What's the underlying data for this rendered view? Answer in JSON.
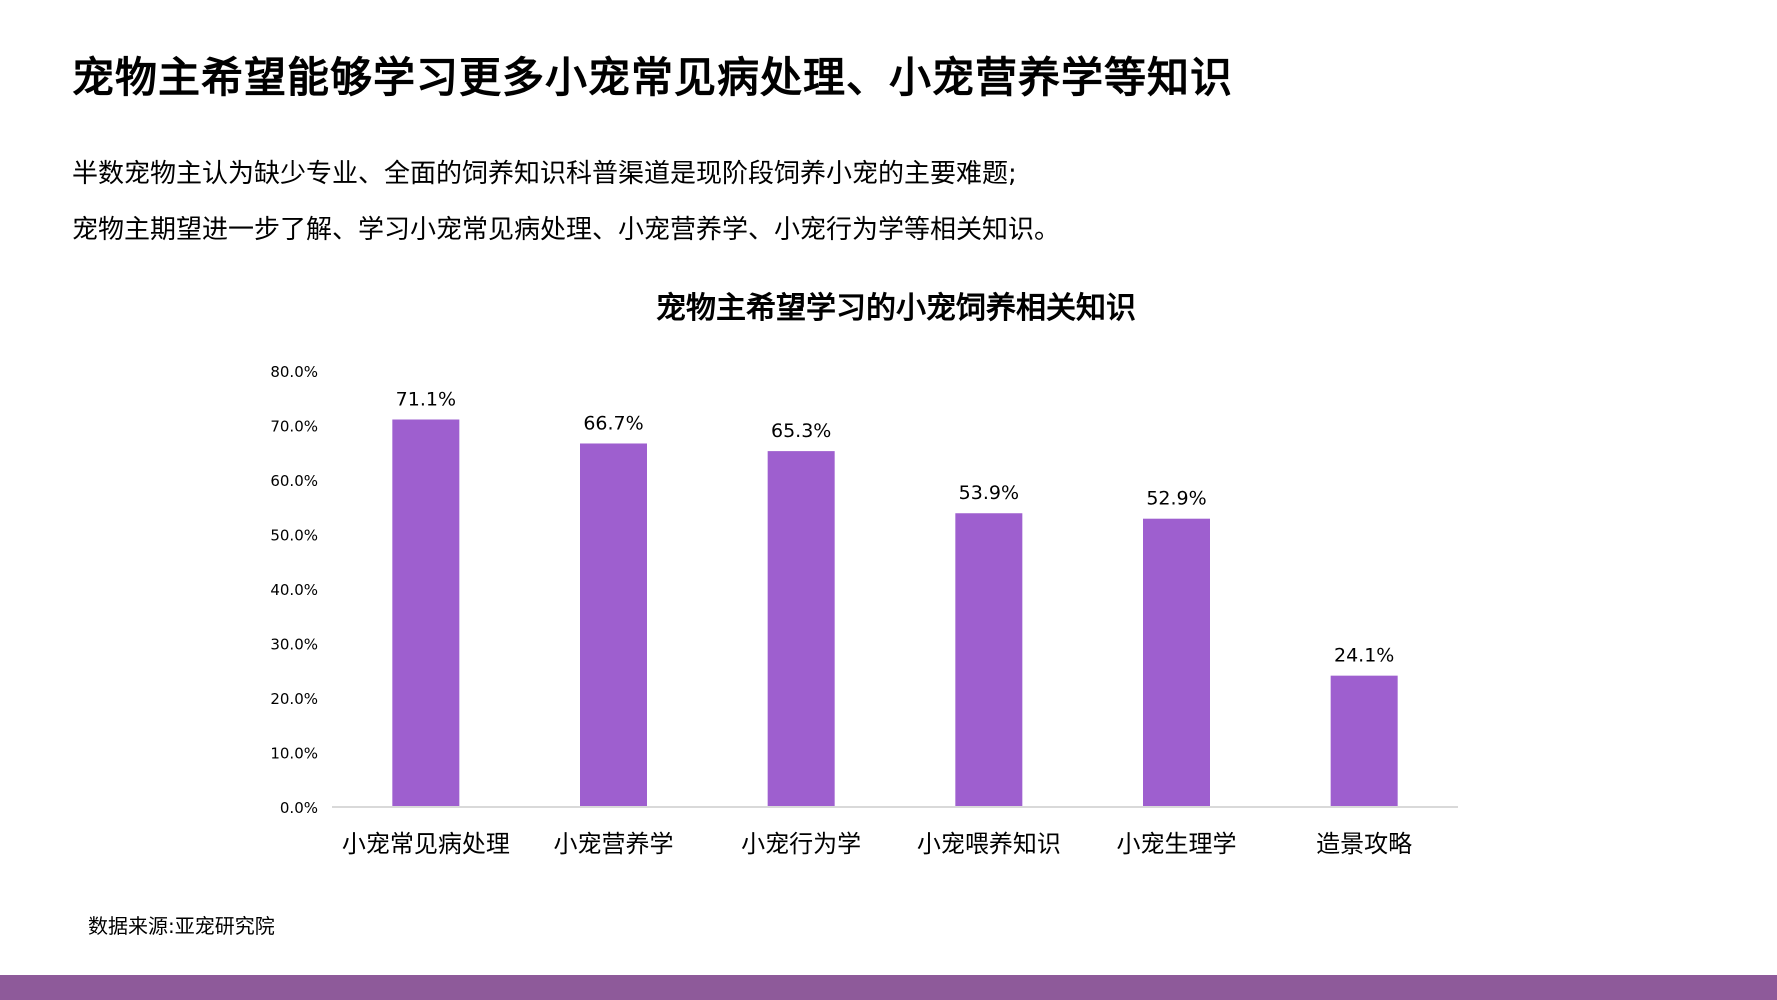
{
  "page": {
    "title": "宠物主希望能够学习更多小宠常见病处理、小宠营养学等知识",
    "summary": [
      "半数宠物主认为缺少专业、全面的饲养知识科普渠道是现阶段饲养小宠的主要难题;",
      "宠物主期望进一步了解、学习小宠常见病处理、小宠营养学、小宠行为学等相关知识。"
    ],
    "source": "数据来源:亚宠研究院",
    "footer_color": "#8E5A9A"
  },
  "chart_data": {
    "type": "bar",
    "title": "宠物主希望学习的小宠饲养相关知识",
    "xlabel": "",
    "ylabel": "",
    "categories": [
      "小宠常见病处理",
      "小宠营养学",
      "小宠行为学",
      "小宠喂养知识",
      "小宠生理学",
      "造景攻略"
    ],
    "values": [
      71.1,
      66.7,
      65.3,
      53.9,
      52.9,
      24.1
    ],
    "data_labels": [
      "71.1%",
      "66.7%",
      "65.3%",
      "53.9%",
      "52.9%",
      "24.1%"
    ],
    "ylim": [
      0,
      80
    ],
    "yticks": [
      0,
      10,
      20,
      30,
      40,
      50,
      60,
      70,
      80
    ],
    "ytick_labels": [
      "0.0%",
      "10.0%",
      "20.0%",
      "30.0%",
      "40.0%",
      "50.0%",
      "60.0%",
      "70.0%",
      "80.0%"
    ],
    "grid": false,
    "legend": "none",
    "bar_color": "#9E5FCF"
  }
}
